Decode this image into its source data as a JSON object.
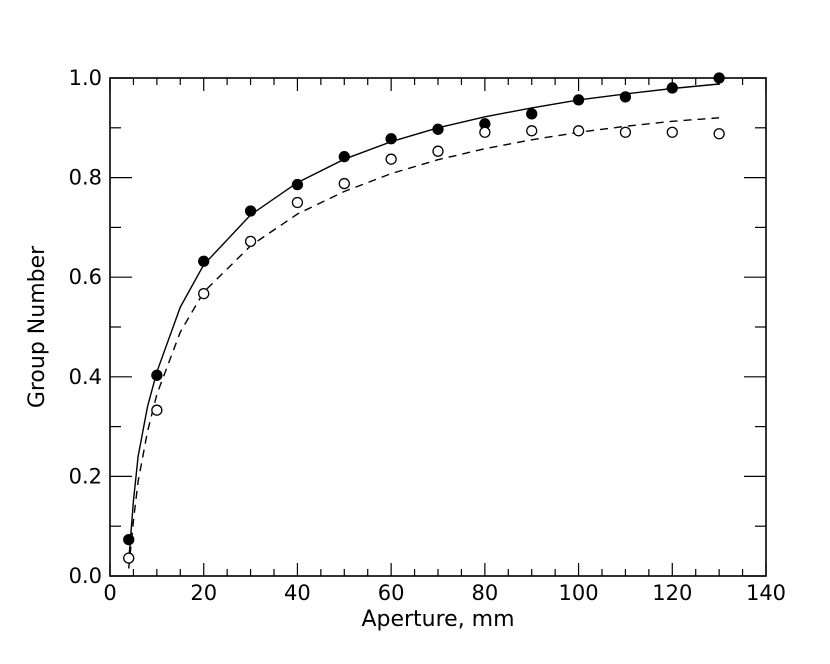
{
  "chart_data": {
    "type": "scatter",
    "xlabel": "Aperture, mm",
    "ylabel": "Group Number",
    "xlim": [
      0,
      140
    ],
    "ylim": [
      0.0,
      1.0
    ],
    "x_ticks": [
      0,
      20,
      40,
      60,
      80,
      100,
      120,
      140
    ],
    "y_ticks": [
      "0.0",
      "0.2",
      "0.4",
      "0.6",
      "0.8",
      "1.0"
    ],
    "grid": false,
    "legend": "none",
    "series": [
      {
        "marker": "filled-circle",
        "points": [
          [
            4,
            0.073
          ],
          [
            10,
            0.403
          ],
          [
            20,
            0.632
          ],
          [
            30,
            0.733
          ],
          [
            40,
            0.786
          ],
          [
            50,
            0.842
          ],
          [
            60,
            0.878
          ],
          [
            70,
            0.897
          ],
          [
            80,
            0.908
          ],
          [
            90,
            0.928
          ],
          [
            100,
            0.956
          ],
          [
            110,
            0.962
          ],
          [
            120,
            0.98
          ],
          [
            130,
            1.0
          ]
        ]
      },
      {
        "marker": "open-circle",
        "points": [
          [
            4,
            0.036
          ],
          [
            10,
            0.333
          ],
          [
            20,
            0.567
          ],
          [
            30,
            0.672
          ],
          [
            40,
            0.75
          ],
          [
            50,
            0.788
          ],
          [
            60,
            0.837
          ],
          [
            70,
            0.853
          ],
          [
            80,
            0.891
          ],
          [
            90,
            0.894
          ],
          [
            100,
            0.894
          ],
          [
            110,
            0.891
          ],
          [
            120,
            0.891
          ],
          [
            130,
            0.888
          ]
        ]
      },
      {
        "marker": "solid-line",
        "points": [
          [
            4,
            0.03
          ],
          [
            5,
            0.15
          ],
          [
            6,
            0.24
          ],
          [
            8,
            0.34
          ],
          [
            10,
            0.41
          ],
          [
            15,
            0.54
          ],
          [
            20,
            0.625
          ],
          [
            30,
            0.725
          ],
          [
            40,
            0.79
          ],
          [
            50,
            0.837
          ],
          [
            60,
            0.872
          ],
          [
            70,
            0.9
          ],
          [
            80,
            0.922
          ],
          [
            90,
            0.94
          ],
          [
            100,
            0.956
          ],
          [
            110,
            0.968
          ],
          [
            120,
            0.979
          ],
          [
            130,
            0.988
          ]
        ]
      },
      {
        "marker": "dashed-line",
        "points": [
          [
            4,
            0.015
          ],
          [
            5,
            0.11
          ],
          [
            6,
            0.19
          ],
          [
            8,
            0.29
          ],
          [
            10,
            0.365
          ],
          [
            15,
            0.49
          ],
          [
            20,
            0.57
          ],
          [
            30,
            0.663
          ],
          [
            40,
            0.727
          ],
          [
            50,
            0.772
          ],
          [
            60,
            0.808
          ],
          [
            70,
            0.836
          ],
          [
            80,
            0.858
          ],
          [
            90,
            0.876
          ],
          [
            100,
            0.891
          ],
          [
            110,
            0.903
          ],
          [
            120,
            0.913
          ],
          [
            130,
            0.92
          ]
        ]
      }
    ]
  }
}
